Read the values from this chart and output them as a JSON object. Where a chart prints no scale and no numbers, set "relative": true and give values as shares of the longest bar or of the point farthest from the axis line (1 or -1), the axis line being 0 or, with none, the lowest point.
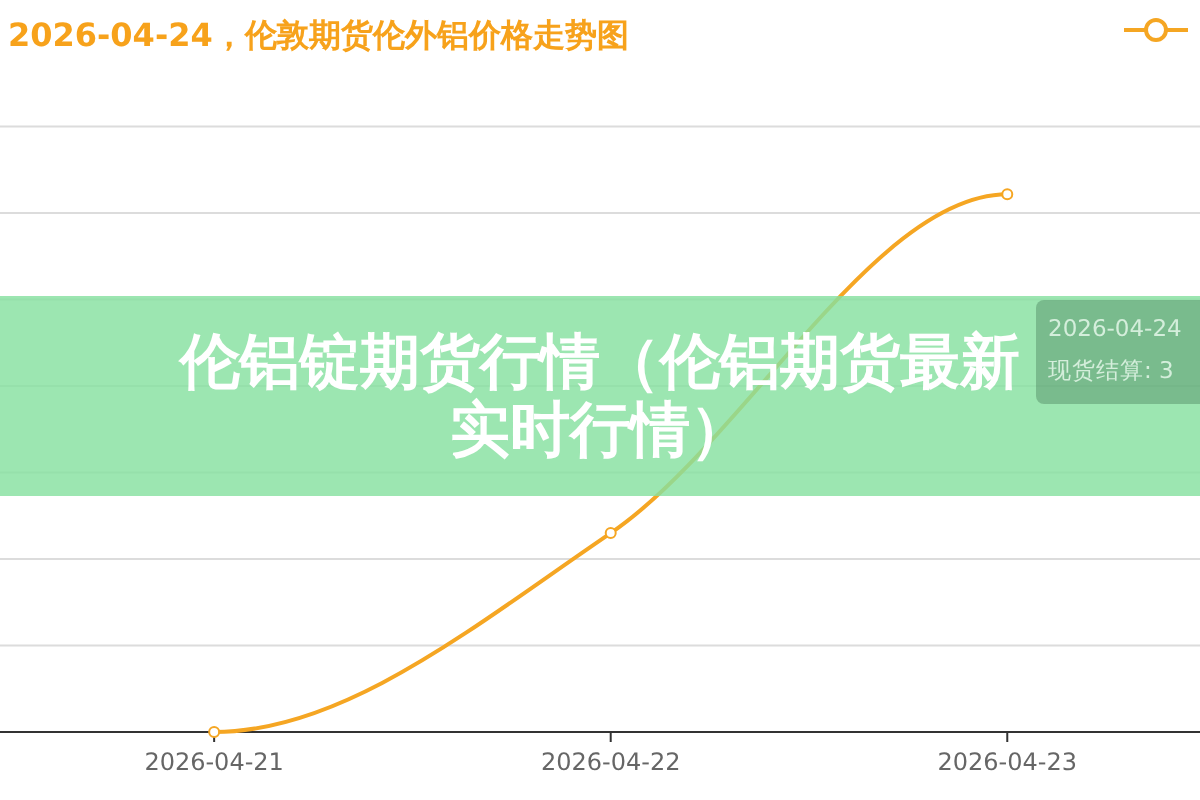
{
  "chart_data": {
    "type": "line",
    "title": "2026-04-24，伦敦期货伦外铝价格走势图",
    "subtitle": "伦铝锭期货行情（伦铝期货最新实时行情）",
    "categories": [
      "2026-04-21",
      "2026-04-22",
      "2026-04-23"
    ],
    "series": [
      {
        "color": "#f5a623",
        "values": [
          0,
          0.37,
          1
        ]
      }
    ],
    "relative": true,
    "marker": "circle",
    "annotations": [
      "2026-04-24",
      "现货结算: 3"
    ]
  }
}
